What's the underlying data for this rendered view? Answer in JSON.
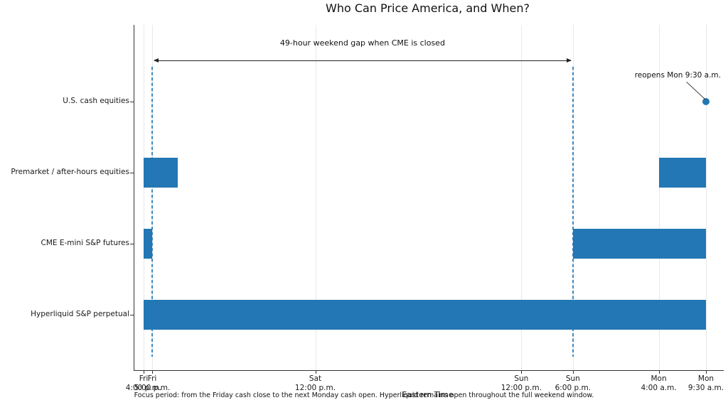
{
  "chart_data": {
    "type": "gantt",
    "title": "Who Can Price America, and When?",
    "xlabel": "Eastern Time",
    "caption": "Focus period: from the Friday cash close to the next Monday cash open. Hyperliquid remains open throughout the full weekend window.",
    "time_axis": {
      "origin": "Fri 4:00 p.m. Eastern Time",
      "units": "hours",
      "range": [
        0,
        65.5
      ]
    },
    "ticks": [
      {
        "t": 0,
        "day": "Fri",
        "time": "4:00 p.m."
      },
      {
        "t": 1,
        "day": "Fri",
        "time": "5:00 p.m."
      },
      {
        "t": 20,
        "day": "Sat",
        "time": "12:00 p.m."
      },
      {
        "t": 44,
        "day": "Sun",
        "time": "12:00 p.m."
      },
      {
        "t": 50,
        "day": "Sun",
        "time": "6:00 p.m."
      },
      {
        "t": 60,
        "day": "Mon",
        "time": "4:00 a.m."
      },
      {
        "t": 65.5,
        "day": "Mon",
        "time": "9:30 a.m."
      }
    ],
    "rows": [
      {
        "label": "U.S. cash equities",
        "intervals": [],
        "marker": {
          "t": 65.5
        }
      },
      {
        "label": "Premarket / after-hours equities",
        "intervals": [
          {
            "start": 0,
            "end": 4
          },
          {
            "start": 60,
            "end": 65.5
          }
        ]
      },
      {
        "label": "CME E-mini S&P futures",
        "intervals": [
          {
            "start": 0,
            "end": 1
          },
          {
            "start": 50,
            "end": 65.5
          }
        ]
      },
      {
        "label": "Hyperliquid S&P perpetual",
        "intervals": [
          {
            "start": 0,
            "end": 65.5
          }
        ]
      }
    ],
    "annotations": {
      "gap": {
        "text": "49-hour weekend gap when CME is closed",
        "from_t": 1,
        "to_t": 50
      },
      "reopen": {
        "text": "reopens Mon 9:30 a.m.",
        "t": 65.5
      }
    },
    "guides": {
      "style": "dashed",
      "at_t": [
        1,
        50
      ]
    },
    "legend": null,
    "grid": "vertical-on",
    "colors": {
      "bar": "#2277b4",
      "guide": "#3f8ac2",
      "grid": "#e8e8e8",
      "axis": "#333333",
      "text": "#1a1a1a"
    }
  }
}
